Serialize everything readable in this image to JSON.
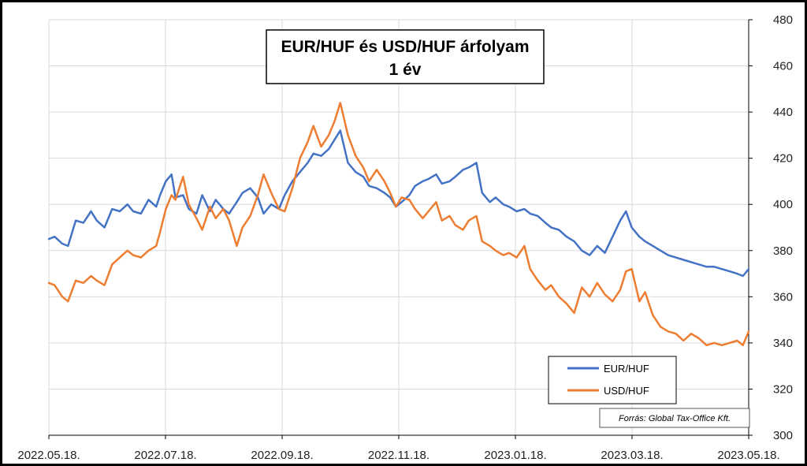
{
  "chart_data": {
    "type": "line",
    "title_lines": [
      "EUR/HUF és USD/HUF árfolyam",
      "1 év"
    ],
    "source": "Forrás: Global Tax-Office Kft.",
    "x_ticks": [
      "2022.05.18.",
      "2022.07.18.",
      "2022.09.18.",
      "2022.11.18.",
      "2023.01.18.",
      "2023.03.18.",
      "2023.05.18."
    ],
    "y_ticks": [
      "300",
      "320",
      "340",
      "360",
      "380",
      "400",
      "420",
      "440",
      "460",
      "480"
    ],
    "ylim": [
      300,
      480
    ],
    "y_axis_side": "right",
    "grid": true,
    "legend_position": "bottom-right",
    "x_domain": [
      "2022-05-18",
      "2023-05-18"
    ],
    "series": [
      {
        "name": "EUR/HUF",
        "color": "#4472C4",
        "points": [
          [
            "2022-05-18",
            385
          ],
          [
            "2022-05-21",
            386
          ],
          [
            "2022-05-25",
            383
          ],
          [
            "2022-05-28",
            382
          ],
          [
            "2022-06-01",
            393
          ],
          [
            "2022-06-05",
            392
          ],
          [
            "2022-06-09",
            397
          ],
          [
            "2022-06-12",
            393
          ],
          [
            "2022-06-16",
            390
          ],
          [
            "2022-06-20",
            398
          ],
          [
            "2022-06-24",
            397
          ],
          [
            "2022-06-28",
            400
          ],
          [
            "2022-07-01",
            397
          ],
          [
            "2022-07-05",
            396
          ],
          [
            "2022-07-09",
            402
          ],
          [
            "2022-07-13",
            399
          ],
          [
            "2022-07-15",
            404
          ],
          [
            "2022-07-18",
            410
          ],
          [
            "2022-07-21",
            413
          ],
          [
            "2022-07-23",
            403
          ],
          [
            "2022-07-27",
            404
          ],
          [
            "2022-07-30",
            398
          ],
          [
            "2022-08-03",
            396
          ],
          [
            "2022-08-06",
            404
          ],
          [
            "2022-08-10",
            397
          ],
          [
            "2022-08-13",
            402
          ],
          [
            "2022-08-17",
            398
          ],
          [
            "2022-08-20",
            396
          ],
          [
            "2022-08-24",
            401
          ],
          [
            "2022-08-27",
            405
          ],
          [
            "2022-08-31",
            407
          ],
          [
            "2022-09-04",
            403
          ],
          [
            "2022-09-07",
            396
          ],
          [
            "2022-09-11",
            400
          ],
          [
            "2022-09-15",
            398
          ],
          [
            "2022-09-18",
            404
          ],
          [
            "2022-09-22",
            410
          ],
          [
            "2022-09-26",
            414
          ],
          [
            "2022-09-30",
            418
          ],
          [
            "2022-10-03",
            422
          ],
          [
            "2022-10-07",
            421
          ],
          [
            "2022-10-11",
            424
          ],
          [
            "2022-10-14",
            428
          ],
          [
            "2022-10-17",
            432
          ],
          [
            "2022-10-21",
            418
          ],
          [
            "2022-10-25",
            414
          ],
          [
            "2022-10-29",
            412
          ],
          [
            "2022-11-01",
            408
          ],
          [
            "2022-11-05",
            407
          ],
          [
            "2022-11-09",
            405
          ],
          [
            "2022-11-12",
            403
          ],
          [
            "2022-11-15",
            399
          ],
          [
            "2022-11-18",
            401
          ],
          [
            "2022-11-22",
            404
          ],
          [
            "2022-11-25",
            408
          ],
          [
            "2022-11-29",
            410
          ],
          [
            "2022-12-02",
            411
          ],
          [
            "2022-12-06",
            413
          ],
          [
            "2022-12-09",
            409
          ],
          [
            "2022-12-13",
            410
          ],
          [
            "2022-12-16",
            412
          ],
          [
            "2022-12-20",
            415
          ],
          [
            "2022-12-23",
            416
          ],
          [
            "2022-12-27",
            418
          ],
          [
            "2022-12-30",
            405
          ],
          [
            "2023-01-03",
            401
          ],
          [
            "2023-01-06",
            403
          ],
          [
            "2023-01-10",
            400
          ],
          [
            "2023-01-13",
            399
          ],
          [
            "2023-01-17",
            397
          ],
          [
            "2023-01-21",
            398
          ],
          [
            "2023-01-24",
            396
          ],
          [
            "2023-01-28",
            395
          ],
          [
            "2023-02-01",
            392
          ],
          [
            "2023-02-04",
            390
          ],
          [
            "2023-02-08",
            389
          ],
          [
            "2023-02-12",
            386
          ],
          [
            "2023-02-16",
            384
          ],
          [
            "2023-02-20",
            380
          ],
          [
            "2023-02-24",
            378
          ],
          [
            "2023-02-28",
            382
          ],
          [
            "2023-03-04",
            379
          ],
          [
            "2023-03-08",
            386
          ],
          [
            "2023-03-12",
            393
          ],
          [
            "2023-03-15",
            397
          ],
          [
            "2023-03-18",
            390
          ],
          [
            "2023-03-22",
            386
          ],
          [
            "2023-03-25",
            384
          ],
          [
            "2023-03-29",
            382
          ],
          [
            "2023-04-02",
            380
          ],
          [
            "2023-04-06",
            378
          ],
          [
            "2023-04-10",
            377
          ],
          [
            "2023-04-14",
            376
          ],
          [
            "2023-04-18",
            375
          ],
          [
            "2023-04-22",
            374
          ],
          [
            "2023-04-26",
            373
          ],
          [
            "2023-04-30",
            373
          ],
          [
            "2023-05-04",
            372
          ],
          [
            "2023-05-08",
            371
          ],
          [
            "2023-05-12",
            370
          ],
          [
            "2023-05-15",
            369
          ],
          [
            "2023-05-18",
            372
          ]
        ]
      },
      {
        "name": "USD/HUF",
        "color": "#ED7D31",
        "points": [
          [
            "2022-05-18",
            366
          ],
          [
            "2022-05-21",
            365
          ],
          [
            "2022-05-25",
            360
          ],
          [
            "2022-05-28",
            358
          ],
          [
            "2022-06-01",
            367
          ],
          [
            "2022-06-05",
            366
          ],
          [
            "2022-06-09",
            369
          ],
          [
            "2022-06-12",
            367
          ],
          [
            "2022-06-16",
            365
          ],
          [
            "2022-06-20",
            374
          ],
          [
            "2022-06-24",
            377
          ],
          [
            "2022-06-28",
            380
          ],
          [
            "2022-07-01",
            378
          ],
          [
            "2022-07-05",
            377
          ],
          [
            "2022-07-09",
            380
          ],
          [
            "2022-07-13",
            382
          ],
          [
            "2022-07-15",
            388
          ],
          [
            "2022-07-18",
            398
          ],
          [
            "2022-07-21",
            404
          ],
          [
            "2022-07-23",
            402
          ],
          [
            "2022-07-27",
            412
          ],
          [
            "2022-07-30",
            400
          ],
          [
            "2022-08-03",
            394
          ],
          [
            "2022-08-06",
            389
          ],
          [
            "2022-08-10",
            399
          ],
          [
            "2022-08-13",
            394
          ],
          [
            "2022-08-17",
            398
          ],
          [
            "2022-08-20",
            393
          ],
          [
            "2022-08-24",
            382
          ],
          [
            "2022-08-27",
            390
          ],
          [
            "2022-08-31",
            395
          ],
          [
            "2022-09-04",
            404
          ],
          [
            "2022-09-07",
            413
          ],
          [
            "2022-09-11",
            405
          ],
          [
            "2022-09-15",
            398
          ],
          [
            "2022-09-18",
            397
          ],
          [
            "2022-09-22",
            407
          ],
          [
            "2022-09-26",
            420
          ],
          [
            "2022-09-30",
            427
          ],
          [
            "2022-10-03",
            434
          ],
          [
            "2022-10-07",
            425
          ],
          [
            "2022-10-11",
            430
          ],
          [
            "2022-10-14",
            436
          ],
          [
            "2022-10-17",
            444
          ],
          [
            "2022-10-21",
            430
          ],
          [
            "2022-10-25",
            421
          ],
          [
            "2022-10-29",
            416
          ],
          [
            "2022-11-01",
            410
          ],
          [
            "2022-11-05",
            415
          ],
          [
            "2022-11-09",
            410
          ],
          [
            "2022-11-12",
            405
          ],
          [
            "2022-11-15",
            399
          ],
          [
            "2022-11-18",
            403
          ],
          [
            "2022-11-22",
            402
          ],
          [
            "2022-11-25",
            398
          ],
          [
            "2022-11-29",
            394
          ],
          [
            "2022-12-02",
            397
          ],
          [
            "2022-12-06",
            401
          ],
          [
            "2022-12-09",
            393
          ],
          [
            "2022-12-13",
            395
          ],
          [
            "2022-12-16",
            391
          ],
          [
            "2022-12-20",
            389
          ],
          [
            "2022-12-23",
            393
          ],
          [
            "2022-12-27",
            395
          ],
          [
            "2022-12-30",
            384
          ],
          [
            "2023-01-03",
            382
          ],
          [
            "2023-01-06",
            380
          ],
          [
            "2023-01-10",
            378
          ],
          [
            "2023-01-13",
            379
          ],
          [
            "2023-01-17",
            377
          ],
          [
            "2023-01-21",
            382
          ],
          [
            "2023-01-24",
            372
          ],
          [
            "2023-01-28",
            367
          ],
          [
            "2023-02-01",
            363
          ],
          [
            "2023-02-04",
            365
          ],
          [
            "2023-02-08",
            360
          ],
          [
            "2023-02-12",
            357
          ],
          [
            "2023-02-16",
            353
          ],
          [
            "2023-02-20",
            364
          ],
          [
            "2023-02-24",
            360
          ],
          [
            "2023-02-28",
            366
          ],
          [
            "2023-03-04",
            361
          ],
          [
            "2023-03-08",
            358
          ],
          [
            "2023-03-12",
            363
          ],
          [
            "2023-03-15",
            371
          ],
          [
            "2023-03-18",
            372
          ],
          [
            "2023-03-22",
            358
          ],
          [
            "2023-03-25",
            362
          ],
          [
            "2023-03-29",
            352
          ],
          [
            "2023-04-02",
            347
          ],
          [
            "2023-04-06",
            345
          ],
          [
            "2023-04-10",
            344
          ],
          [
            "2023-04-14",
            341
          ],
          [
            "2023-04-18",
            344
          ],
          [
            "2023-04-22",
            342
          ],
          [
            "2023-04-26",
            339
          ],
          [
            "2023-04-30",
            340
          ],
          [
            "2023-05-04",
            339
          ],
          [
            "2023-05-08",
            340
          ],
          [
            "2023-05-12",
            341
          ],
          [
            "2023-05-15",
            339
          ],
          [
            "2023-05-18",
            345
          ]
        ]
      }
    ]
  }
}
